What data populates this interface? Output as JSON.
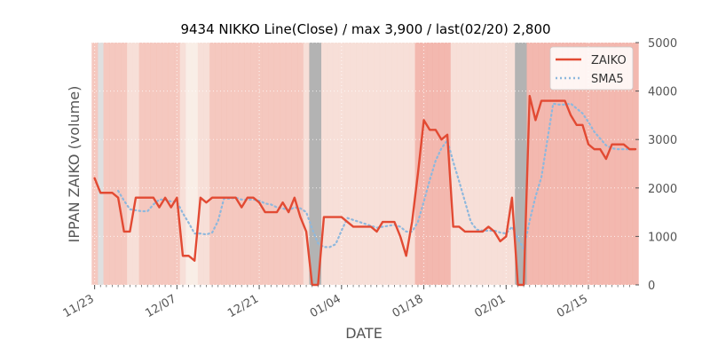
{
  "chart_data": {
    "type": "line",
    "title": "9434 NIKKO Line(Close) / max 3,900 / last(02/20) 2,800",
    "xlabel": "DATE",
    "ylabel": "IPPAN ZAIKO (volume)",
    "ylim": [
      0,
      5000
    ],
    "y_ticks": [
      0,
      1000,
      2000,
      3000,
      4000,
      5000
    ],
    "y_tick_labels": [
      "0",
      "1000",
      "2000",
      "3000",
      "4000",
      "5000"
    ],
    "x_range": [
      -1,
      92
    ],
    "x_ticks": [
      {
        "i": 0,
        "label": "11/23"
      },
      {
        "i": 14,
        "label": "12/07"
      },
      {
        "i": 28,
        "label": "12/21"
      },
      {
        "i": 42,
        "label": "01/04"
      },
      {
        "i": 56,
        "label": "01/18"
      },
      {
        "i": 70,
        "label": "02/01"
      },
      {
        "i": 84,
        "label": "02/15"
      }
    ],
    "grid": true,
    "legend_position": "top-right",
    "series": [
      {
        "name": "ZAIKO",
        "color": "#e24a33",
        "style": "solid",
        "values": [
          2200,
          1900,
          1900,
          1900,
          1800,
          1100,
          1100,
          1800,
          1800,
          1800,
          1800,
          1600,
          1800,
          1600,
          1800,
          600,
          600,
          500,
          1800,
          1700,
          1800,
          1800,
          1800,
          1800,
          1800,
          1600,
          1800,
          1800,
          1700,
          1500,
          1500,
          1500,
          1700,
          1500,
          1800,
          1400,
          1100,
          0,
          0,
          1400,
          1400,
          1400,
          1400,
          1300,
          1200,
          1200,
          1200,
          1200,
          1100,
          1300,
          1300,
          1300,
          1000,
          600,
          1300,
          2300,
          3400,
          3200,
          3200,
          3000,
          3100,
          1200,
          1200,
          1100,
          1100,
          1100,
          1100,
          1200,
          1100,
          900,
          1000,
          1800,
          0,
          0,
          3900,
          3400,
          3800,
          3800,
          3800,
          3800,
          3800,
          3500,
          3300,
          3300,
          2900,
          2800,
          2800,
          2600,
          2900,
          2900,
          2900,
          2800,
          2800
        ]
      },
      {
        "name": "SMA5",
        "color": "#8eb8dd",
        "style": "dotted",
        "values": [
          null,
          null,
          null,
          null,
          1940,
          1740,
          1560,
          1540,
          1520,
          1520,
          1660,
          1760,
          1760,
          1720,
          1720,
          1480,
          1280,
          1060,
          1060,
          1040,
          1080,
          1320,
          1780,
          1780,
          1800,
          1760,
          1760,
          1760,
          1740,
          1680,
          1660,
          1600,
          1580,
          1540,
          1600,
          1580,
          1500,
          1160,
          860,
          780,
          780,
          840,
          1120,
          1380,
          1340,
          1300,
          1260,
          1220,
          1180,
          1200,
          1220,
          1240,
          1200,
          1100,
          1100,
          1300,
          1720,
          2160,
          2560,
          2820,
          2980,
          2540,
          2140,
          1720,
          1300,
          1140,
          1120,
          1120,
          1120,
          1080,
          1060,
          1200,
          960,
          740,
          1320,
          1820,
          2220,
          2980,
          3740,
          3720,
          3720,
          3740,
          3640,
          3540,
          3360,
          3160,
          3020,
          2880,
          2820,
          2800,
          2800,
          2800,
          2800
        ]
      }
    ],
    "background_bands": [
      {
        "color": "#dcdcdc",
        "alpha": 0.9,
        "values": [
          1
        ]
      },
      {
        "color": "#f4c2b8",
        "alpha": 0.9,
        "values": [
          2,
          3,
          4,
          5,
          8,
          9,
          10,
          11,
          12,
          13,
          14,
          20,
          21,
          22,
          23,
          24,
          25,
          26,
          27,
          28,
          29,
          30,
          31,
          32,
          33,
          34,
          35
        ]
      },
      {
        "color": "#f6dcd4",
        "alpha": 0.9,
        "values": [
          6,
          7,
          15,
          18,
          19,
          36,
          39,
          40,
          41,
          42,
          43,
          44,
          45,
          46,
          47,
          48,
          49,
          50,
          51,
          52,
          53,
          54,
          61,
          62,
          63,
          64,
          65,
          66,
          67,
          68,
          69,
          70,
          71
        ]
      },
      {
        "color": "#f8ece4",
        "alpha": 0.9,
        "values": [
          16,
          17
        ]
      },
      {
        "color": "#b3b3b3",
        "alpha": 1.0,
        "values": [
          37,
          38,
          72,
          73
        ]
      },
      {
        "color": "#f2b0a6",
        "alpha": 0.9,
        "values": [
          55,
          56,
          57,
          58,
          59,
          60,
          74,
          75,
          76,
          77,
          78,
          79,
          80,
          81,
          82,
          83,
          84,
          85,
          86,
          87,
          88,
          89,
          90,
          91,
          92
        ]
      }
    ]
  }
}
